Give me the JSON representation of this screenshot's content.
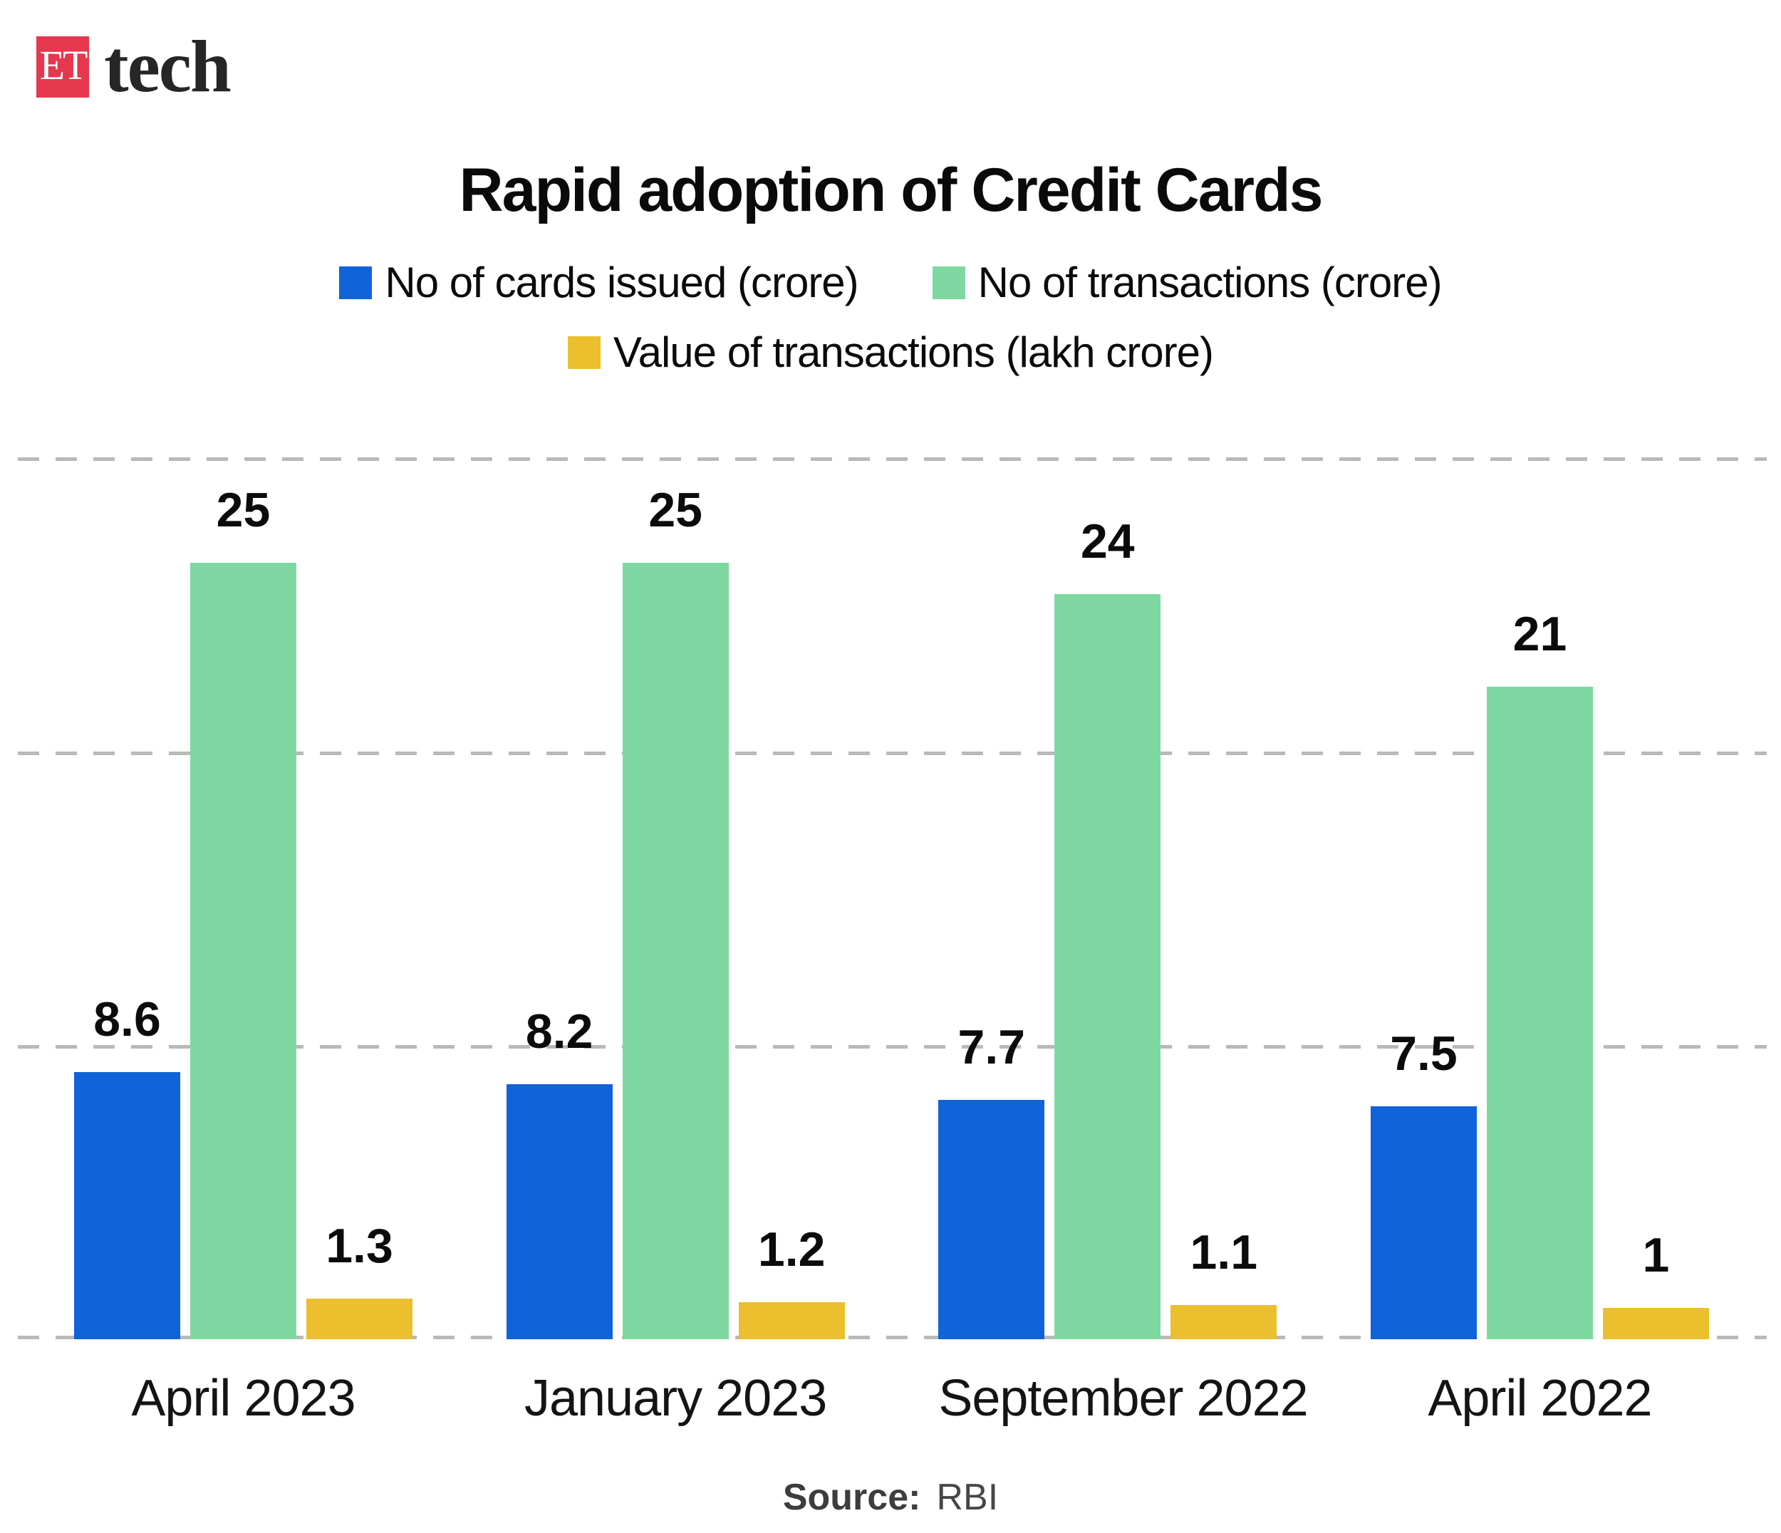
{
  "logo": {
    "et": "ET",
    "brand": "tech",
    "box_color": "#E5384E"
  },
  "title": "Rapid adoption of Credit Cards",
  "legend": [
    {
      "label": "No of cards issued (crore)",
      "color": "#1063D8"
    },
    {
      "label": "No of transactions (crore)",
      "color": "#7FD8A2"
    },
    {
      "label": "Value of transactions (lakh crore)",
      "color": "#EBBF2D"
    }
  ],
  "source": {
    "label": "Source:",
    "value": "RBI"
  },
  "colors": {
    "gridline": "#b9b9b9",
    "background": "#ffffff",
    "text": "#0b0b0b"
  },
  "chart_data": {
    "type": "bar",
    "title": "Rapid adoption of Credit Cards",
    "categories": [
      "April 2023",
      "January 2023",
      "September 2022",
      "April 2022"
    ],
    "series": [
      {
        "name": "No of cards issued (crore)",
        "color": "#1063D8",
        "values": [
          8.6,
          8.2,
          7.7,
          7.5
        ]
      },
      {
        "name": "No of transactions (crore)",
        "color": "#7FD8A2",
        "values": [
          25,
          25,
          24,
          21
        ]
      },
      {
        "name": "Value of transactions (lakh crore)",
        "color": "#EBBF2D",
        "values": [
          1.3,
          1.2,
          1.1,
          1
        ]
      }
    ],
    "value_labels": [
      [
        "8.6",
        "25",
        "1.3"
      ],
      [
        "8.2",
        "25",
        "1.2"
      ],
      [
        "7.7",
        "24",
        "1.1"
      ],
      [
        "7.5",
        "21",
        "1"
      ]
    ],
    "xlabel": "",
    "ylabel": "",
    "ylim": [
      0,
      28.4
    ],
    "grid": "dashed-horizontal",
    "legend_position": "top",
    "source": "RBI"
  }
}
